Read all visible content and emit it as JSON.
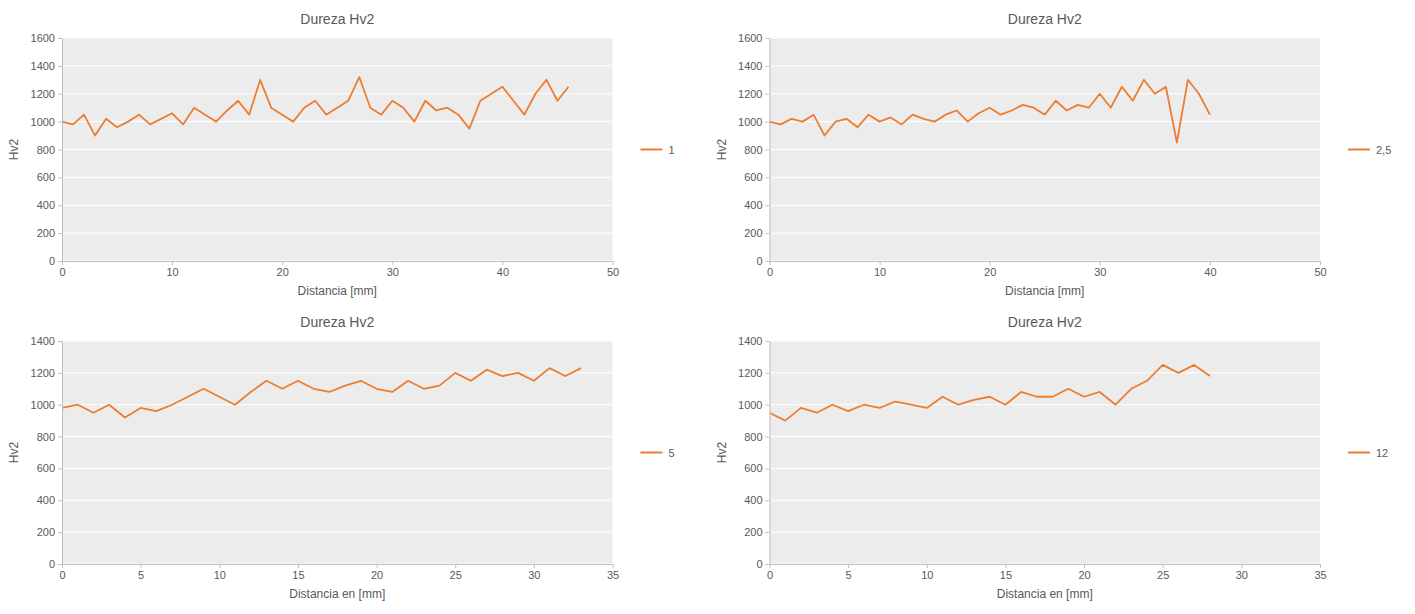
{
  "chart_data": [
    {
      "type": "line",
      "title": "Dureza Hv2",
      "x_label": "Distancia [mm]",
      "y_label": "Hv2",
      "x": [
        0,
        1,
        2,
        3,
        4,
        5,
        6,
        7,
        8,
        9,
        10,
        11,
        12,
        13,
        14,
        15,
        16,
        17,
        18,
        19,
        20,
        21,
        22,
        23,
        24,
        25,
        26,
        27,
        28,
        29,
        30,
        31,
        32,
        33,
        34,
        35,
        36,
        37,
        38,
        39,
        40,
        41,
        42,
        43,
        44,
        45,
        46
      ],
      "series": [
        {
          "name": "1",
          "color": "#ed7d31",
          "values": [
            1000,
            980,
            1050,
            900,
            1020,
            960,
            1000,
            1050,
            980,
            1020,
            1060,
            980,
            1100,
            1050,
            1000,
            1080,
            1150,
            1050,
            1300,
            1100,
            1050,
            1000,
            1100,
            1150,
            1050,
            1100,
            1150,
            1320,
            1100,
            1050,
            1150,
            1100,
            1000,
            1150,
            1080,
            1100,
            1050,
            950,
            1150,
            1200,
            1250,
            1150,
            1050,
            1200,
            1300,
            1150,
            1250
          ]
        }
      ],
      "xlim": [
        0,
        50
      ],
      "xticks": [
        0,
        10,
        20,
        30,
        40,
        50
      ],
      "ylim": [
        0,
        1600
      ],
      "yticks": [
        0,
        200,
        400,
        600,
        800,
        1000,
        1200,
        1400,
        1600
      ],
      "grid": true,
      "legend": "right"
    },
    {
      "type": "line",
      "title": "Dureza Hv2",
      "x_label": "Distancia [mm]",
      "y_label": "Hv2",
      "x": [
        0,
        1,
        2,
        3,
        4,
        5,
        6,
        7,
        8,
        9,
        10,
        11,
        12,
        13,
        14,
        15,
        16,
        17,
        18,
        19,
        20,
        21,
        22,
        23,
        24,
        25,
        26,
        27,
        28,
        29,
        30,
        31,
        32,
        33,
        34,
        35,
        36,
        37,
        38,
        39,
        40
      ],
      "series": [
        {
          "name": "2,5",
          "color": "#ed7d31",
          "values": [
            1000,
            980,
            1020,
            1000,
            1050,
            900,
            1000,
            1020,
            960,
            1050,
            1000,
            1030,
            980,
            1050,
            1020,
            1000,
            1050,
            1080,
            1000,
            1060,
            1100,
            1050,
            1080,
            1120,
            1100,
            1050,
            1150,
            1080,
            1120,
            1100,
            1200,
            1100,
            1250,
            1150,
            1300,
            1200,
            1250,
            850,
            1300,
            1200,
            1050
          ]
        }
      ],
      "xlim": [
        0,
        50
      ],
      "xticks": [
        0,
        10,
        20,
        30,
        40,
        50
      ],
      "ylim": [
        0,
        1600
      ],
      "yticks": [
        0,
        200,
        400,
        600,
        800,
        1000,
        1200,
        1400,
        1600
      ],
      "grid": true,
      "legend": "right"
    },
    {
      "type": "line",
      "title": "Dureza Hv2",
      "x_label": "Distancia en [mm]",
      "y_label": "Hv2",
      "x": [
        0,
        1,
        2,
        3,
        4,
        5,
        6,
        7,
        8,
        9,
        10,
        11,
        12,
        13,
        14,
        15,
        16,
        17,
        18,
        19,
        20,
        21,
        22,
        23,
        24,
        25,
        26,
        27,
        28,
        29,
        30,
        31,
        32,
        33
      ],
      "series": [
        {
          "name": "5",
          "color": "#ed7d31",
          "values": [
            980,
            1000,
            950,
            1000,
            920,
            980,
            960,
            1000,
            1050,
            1100,
            1050,
            1000,
            1080,
            1150,
            1100,
            1150,
            1100,
            1080,
            1120,
            1150,
            1100,
            1080,
            1150,
            1100,
            1120,
            1200,
            1150,
            1220,
            1180,
            1200,
            1150,
            1230,
            1180,
            1230
          ]
        }
      ],
      "xlim": [
        0,
        35
      ],
      "xticks": [
        0,
        5,
        10,
        15,
        20,
        25,
        30,
        35
      ],
      "ylim": [
        0,
        1400
      ],
      "yticks": [
        0,
        200,
        400,
        600,
        800,
        1000,
        1200,
        1400
      ],
      "grid": true,
      "legend": "right"
    },
    {
      "type": "line",
      "title": "Dureza Hv2",
      "x_label": "Distancia en [mm]",
      "y_label": "Hv2",
      "x": [
        0,
        1,
        2,
        3,
        4,
        5,
        6,
        7,
        8,
        9,
        10,
        11,
        12,
        13,
        14,
        15,
        16,
        17,
        18,
        19,
        20,
        21,
        22,
        23,
        24,
        25,
        26,
        27,
        28
      ],
      "series": [
        {
          "name": "12",
          "color": "#ed7d31",
          "values": [
            950,
            900,
            980,
            950,
            1000,
            960,
            1000,
            980,
            1020,
            1000,
            980,
            1050,
            1000,
            1030,
            1050,
            1000,
            1080,
            1050,
            1050,
            1100,
            1050,
            1080,
            1000,
            1100,
            1150,
            1250,
            1200,
            1250,
            1180
          ]
        }
      ],
      "xlim": [
        0,
        35
      ],
      "xticks": [
        0,
        5,
        10,
        15,
        20,
        25,
        30,
        35
      ],
      "ylim": [
        0,
        1400
      ],
      "yticks": [
        0,
        200,
        400,
        600,
        800,
        1000,
        1200,
        1400
      ],
      "grid": true,
      "legend": "right"
    }
  ]
}
